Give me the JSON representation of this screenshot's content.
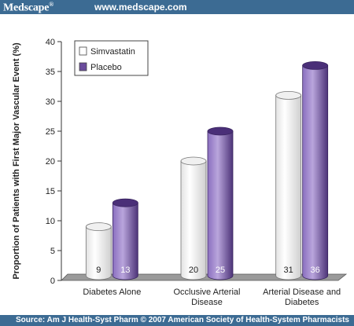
{
  "header": {
    "brand": "Medscape",
    "brand_mark": "®",
    "url": "www.medscape.com"
  },
  "footer": {
    "source": "Source: Am J Health-Syst Pharm © 2007 American Society of Health-System Pharmacists"
  },
  "colors": {
    "banner": "#3c6b93",
    "simvastatin": "#f4f4f4",
    "placebo": "#6a4c9c"
  },
  "chart_data": {
    "type": "bar",
    "title": "",
    "ylabel": "Proportion of Patients with First Major Vascular Event (%)",
    "xlabel": "",
    "ylim": [
      0,
      40
    ],
    "yticks": [
      0,
      5,
      10,
      15,
      20,
      25,
      30,
      35,
      40
    ],
    "categories": [
      [
        "Diabetes Alone"
      ],
      [
        "Occlusive Arterial",
        "Disease"
      ],
      [
        "Arterial Disease and",
        "Diabetes"
      ]
    ],
    "series": [
      {
        "name": "Simvastatin",
        "values": [
          9,
          20,
          31
        ]
      },
      {
        "name": "Placebo",
        "values": [
          13,
          25,
          36
        ]
      }
    ],
    "legend": "top-left",
    "grid": false
  }
}
